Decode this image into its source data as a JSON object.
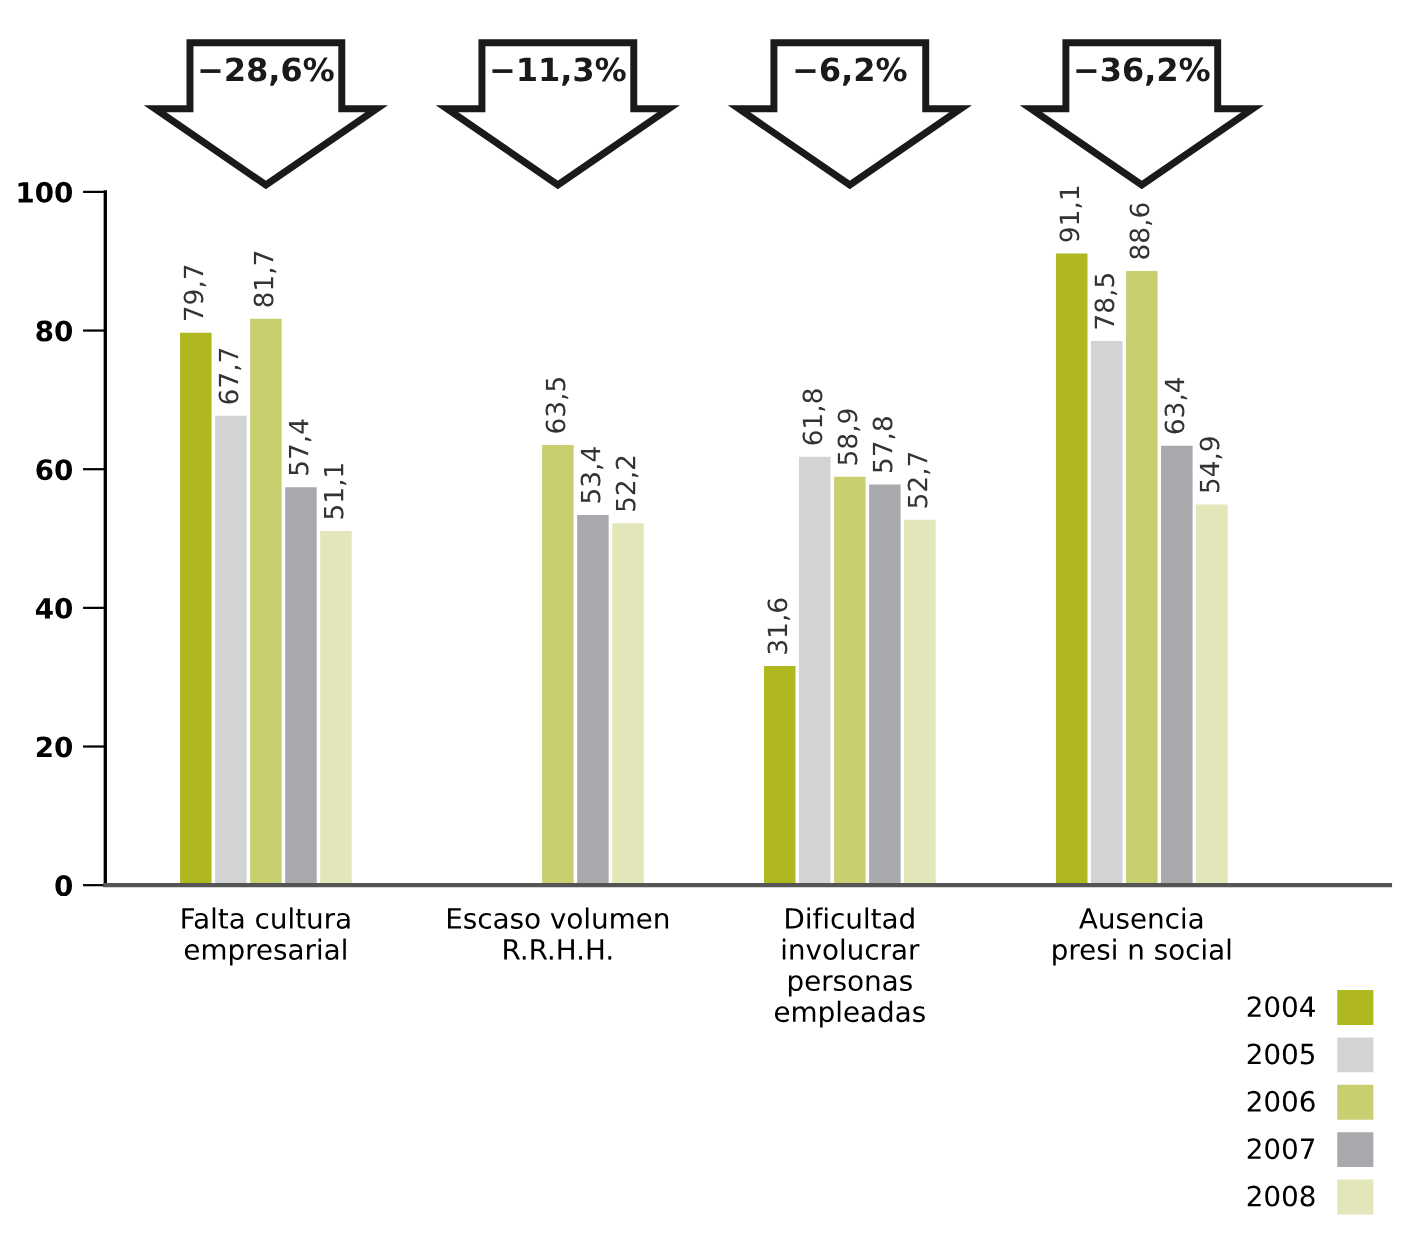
{
  "chart_data": {
    "type": "bar",
    "categories": [
      "Falta cultura\nempresarial",
      "Escaso volumen\nR.R.H.H.",
      "Dificultad\ninvolucrar\npersonas\nempleadas",
      "Ausencia\npresi n social"
    ],
    "series": [
      {
        "name": "2004",
        "color": "#b0b820",
        "values": [
          79.7,
          null,
          31.6,
          91.1
        ],
        "value_labels": [
          "79,7",
          null,
          "31,6",
          "91,1"
        ]
      },
      {
        "name": "2005",
        "color": "#d2d3d5",
        "values": [
          67.7,
          null,
          61.8,
          78.5
        ],
        "value_labels": [
          "67,7",
          null,
          "61,8",
          "78,5"
        ]
      },
      {
        "name": "2006",
        "color": "#c8cf70",
        "values": [
          81.7,
          63.5,
          58.9,
          88.6
        ],
        "value_labels": [
          "81,7",
          "63,5",
          "58,9",
          "88,6"
        ]
      },
      {
        "name": "2007",
        "color": "#a7a9ac",
        "values": [
          57.4,
          53.4,
          57.8,
          63.4
        ],
        "value_labels": [
          "57,4",
          "53,4",
          "57,8",
          "63,4"
        ]
      },
      {
        "name": "2008",
        "color": "#e2e6b8",
        "values": [
          51.1,
          52.2,
          52.7,
          54.9
        ],
        "value_labels": [
          "51,1",
          "52,2",
          "52,7",
          "54,9"
        ]
      }
    ],
    "annotations": [
      "−28,6%",
      "−11,3%",
      "−6,2%",
      "−36,2%"
    ],
    "ylim": [
      0,
      100
    ],
    "yticks": [
      0,
      20,
      40,
      60,
      80,
      100
    ],
    "grid": false,
    "legend": "bottom right"
  }
}
